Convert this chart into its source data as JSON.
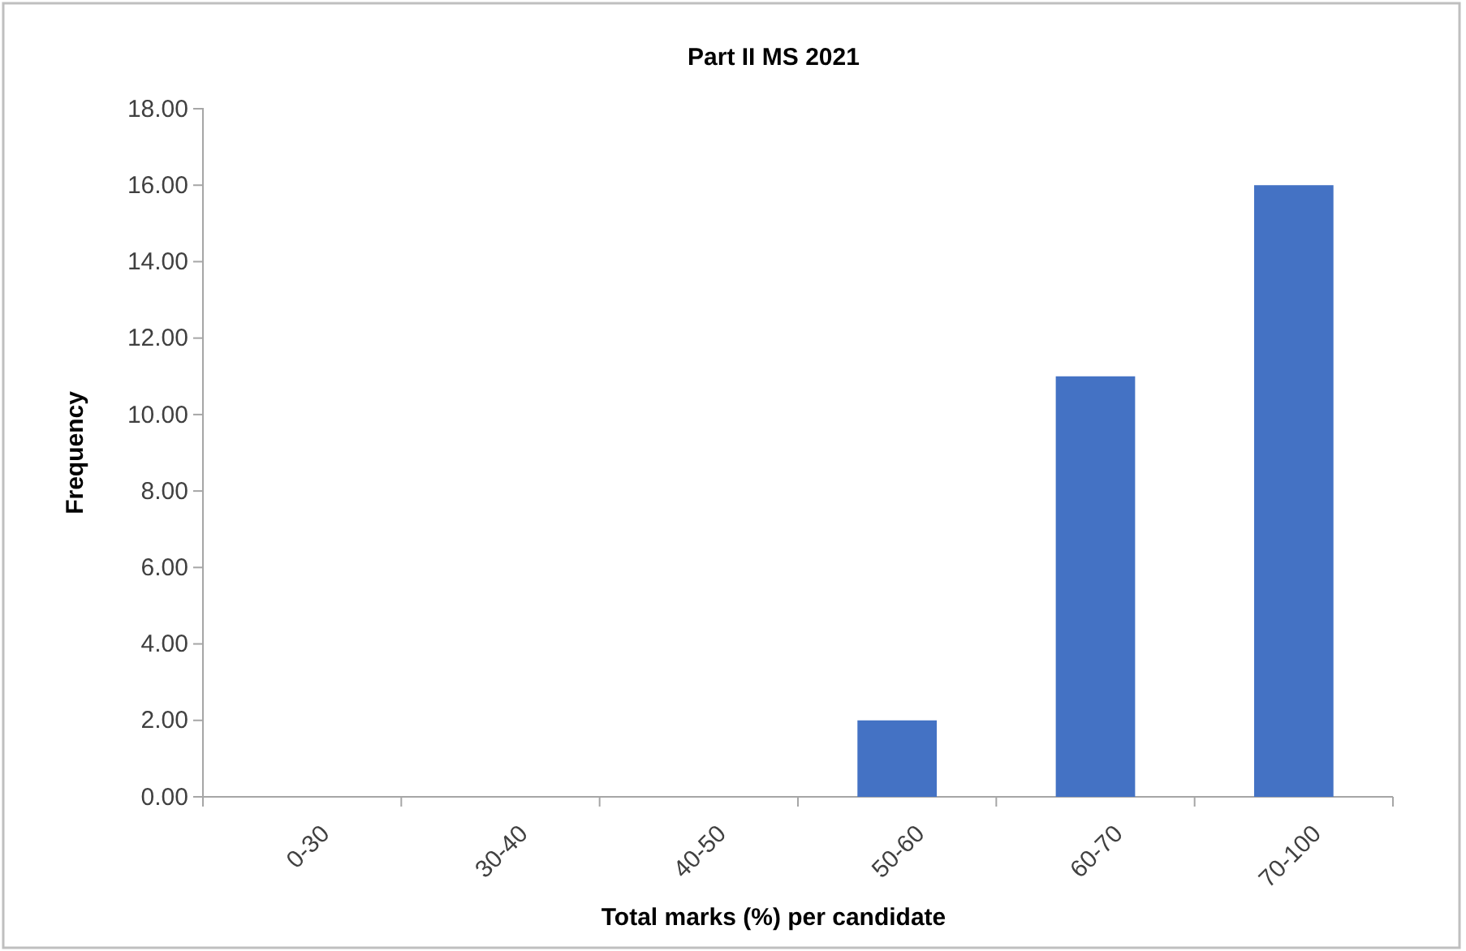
{
  "chart_data": {
    "type": "bar",
    "title": "Part II MS 2021",
    "xlabel": "Total marks (%) per candidate",
    "ylabel": "Frequency",
    "categories": [
      "0-30",
      "30-40",
      "40-50",
      "50-60",
      "60-70",
      "70-100"
    ],
    "values": [
      0,
      0,
      0,
      2,
      11,
      16
    ],
    "color": "#4472c4",
    "ylim": [
      0,
      18
    ],
    "yticks": [
      {
        "value": 0,
        "label": "0.00"
      },
      {
        "value": 2,
        "label": "2.00"
      },
      {
        "value": 4,
        "label": "4.00"
      },
      {
        "value": 6,
        "label": "6.00"
      },
      {
        "value": 8,
        "label": "8.00"
      },
      {
        "value": 10,
        "label": "10.00"
      },
      {
        "value": 12,
        "label": "12.00"
      },
      {
        "value": 14,
        "label": "14.00"
      },
      {
        "value": 16,
        "label": "16.00"
      },
      {
        "value": 18,
        "label": "18.00"
      }
    ],
    "grid": false
  }
}
